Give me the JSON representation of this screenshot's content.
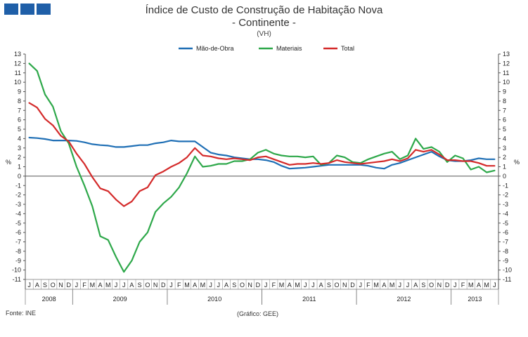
{
  "header": {
    "logo_colors": [
      "#1f5fa8",
      "#1f5fa8",
      "#1f5fa8"
    ]
  },
  "chart_data": {
    "type": "line",
    "title": "Índice de Custo de Construção de Habitação Nova",
    "subtitle": "- Continente -",
    "unit_note": "(VH)",
    "ylabel_left": "%",
    "ylabel_right": "%",
    "ylim": [
      -11,
      13
    ],
    "yticks": [
      13,
      12,
      11,
      10,
      9,
      8,
      7,
      6,
      5,
      4,
      3,
      2,
      1,
      0,
      -1,
      -2,
      -3,
      -4,
      -5,
      -6,
      -7,
      -8,
      -9,
      -10,
      -11
    ],
    "categories": [
      "J",
      "A",
      "S",
      "O",
      "N",
      "D",
      "J",
      "F",
      "M",
      "A",
      "M",
      "J",
      "J",
      "A",
      "S",
      "O",
      "N",
      "D",
      "J",
      "F",
      "M",
      "A",
      "M",
      "J",
      "J",
      "A",
      "S",
      "O",
      "N",
      "D",
      "J",
      "F",
      "M",
      "A",
      "M",
      "J",
      "J",
      "A",
      "S",
      "O",
      "N",
      "D",
      "J",
      "F",
      "M",
      "A",
      "M",
      "J",
      "J",
      "A",
      "S",
      "O",
      "N",
      "D",
      "J",
      "F",
      "M",
      "A",
      "M",
      "J"
    ],
    "years": [
      {
        "label": "2008",
        "start": 0,
        "end": 5
      },
      {
        "label": "2009",
        "start": 6,
        "end": 17
      },
      {
        "label": "2010",
        "start": 18,
        "end": 29
      },
      {
        "label": "2011",
        "start": 30,
        "end": 41
      },
      {
        "label": "2012",
        "start": 42,
        "end": 53
      },
      {
        "label": "2013",
        "start": 54,
        "end": 59
      }
    ],
    "series": [
      {
        "name": "Mão-de-Obra",
        "color": "#1f6fb5",
        "values": [
          4.1,
          4.05,
          3.95,
          3.8,
          3.8,
          3.8,
          3.75,
          3.6,
          3.4,
          3.3,
          3.25,
          3.1,
          3.1,
          3.2,
          3.3,
          3.3,
          3.5,
          3.6,
          3.8,
          3.7,
          3.7,
          3.7,
          3.1,
          2.5,
          2.3,
          2.2,
          2.0,
          1.9,
          1.8,
          1.8,
          1.7,
          1.5,
          1.1,
          0.8,
          0.85,
          0.9,
          1.0,
          1.1,
          1.2,
          1.2,
          1.2,
          1.2,
          1.2,
          1.1,
          0.9,
          0.8,
          1.2,
          1.4,
          1.7,
          2.0,
          2.3,
          2.6,
          2.1,
          1.7,
          1.6,
          1.6,
          1.7,
          1.9,
          1.8,
          1.8
        ]
      },
      {
        "name": "Materiais",
        "color": "#2ea84a",
        "values": [
          12.0,
          11.2,
          8.7,
          7.4,
          4.8,
          3.5,
          1.0,
          -1.0,
          -3.2,
          -6.4,
          -6.8,
          -8.6,
          -10.2,
          -9.0,
          -7.0,
          -6.0,
          -3.8,
          -2.9,
          -2.2,
          -1.2,
          0.3,
          2.1,
          1.0,
          1.1,
          1.3,
          1.3,
          1.6,
          1.6,
          1.8,
          2.5,
          2.8,
          2.4,
          2.2,
          2.1,
          2.1,
          2.0,
          2.1,
          1.2,
          1.4,
          2.2,
          2.0,
          1.5,
          1.4,
          1.8,
          2.1,
          2.4,
          2.6,
          1.8,
          2.2,
          4.0,
          2.9,
          3.1,
          2.6,
          1.5,
          2.2,
          1.9,
          0.7,
          1.0,
          0.4,
          0.6
        ]
      },
      {
        "name": "Total",
        "color": "#d42a2a",
        "values": [
          7.8,
          7.3,
          6.1,
          5.4,
          4.3,
          3.7,
          2.4,
          1.3,
          -0.1,
          -1.3,
          -1.6,
          -2.5,
          -3.2,
          -2.7,
          -1.6,
          -1.2,
          0.1,
          0.5,
          1.0,
          1.4,
          2.0,
          3.0,
          2.2,
          2.1,
          1.9,
          1.8,
          1.9,
          1.8,
          1.7,
          2.0,
          2.1,
          1.8,
          1.5,
          1.2,
          1.3,
          1.3,
          1.4,
          1.3,
          1.4,
          1.7,
          1.5,
          1.4,
          1.3,
          1.4,
          1.5,
          1.6,
          1.8,
          1.6,
          1.9,
          2.8,
          2.6,
          2.8,
          2.3,
          1.7,
          1.7,
          1.6,
          1.6,
          1.4,
          1.1,
          1.1
        ]
      }
    ],
    "legend_position": "top-center"
  },
  "footer": {
    "source": "Fonte:  INE",
    "graphic": "(Gráfico:  GEE)"
  }
}
